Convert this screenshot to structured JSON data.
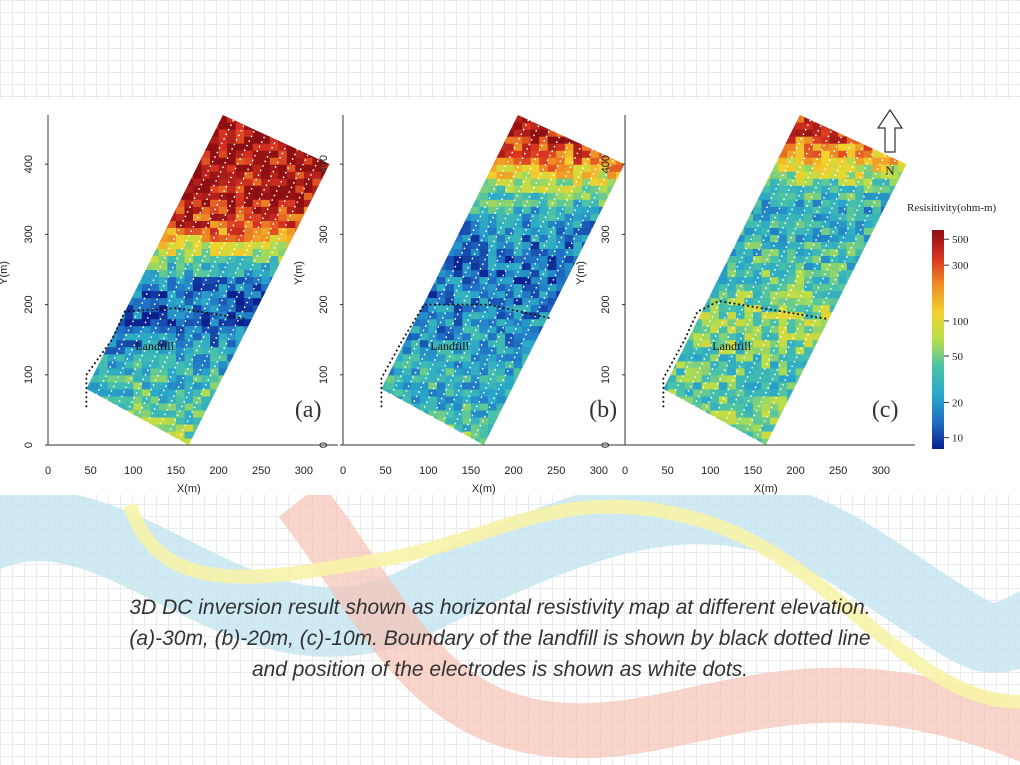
{
  "colors": {
    "colormap": [
      "#0b1f8f",
      "#1f6fc4",
      "#2aa8c9",
      "#49c2a8",
      "#b7de4a",
      "#f2d22c",
      "#ef8d25",
      "#d73221",
      "#8e0f12"
    ],
    "ribbon_cyan": "#bfe3ef",
    "ribbon_pink": "#f7c2b4",
    "ribbon_yellow": "#f7f3a8"
  },
  "chart_data": [
    {
      "type": "heatmap",
      "panel_label": "(a)",
      "region_label": "Landfill",
      "xlabel": "X(m)",
      "ylabel": "Y(m)",
      "xlim": [
        0,
        340
      ],
      "ylim": [
        0,
        470
      ],
      "xticks": [
        "0",
        "50",
        "100",
        "150",
        "200",
        "250",
        "300"
      ],
      "yticks": [
        "0",
        "100",
        "200",
        "300",
        "400"
      ],
      "resistivity_by_y": [
        [
          0,
          60
        ],
        [
          60,
          40
        ],
        [
          120,
          25
        ],
        [
          180,
          12
        ],
        [
          230,
          15
        ],
        [
          270,
          60
        ],
        [
          310,
          300
        ],
        [
          360,
          450
        ],
        [
          470,
          600
        ]
      ],
      "landfill_boundary": [
        [
          45,
          55
        ],
        [
          45,
          100
        ],
        [
          75,
          150
        ],
        [
          90,
          190
        ],
        [
          150,
          195
        ],
        [
          230,
          180
        ]
      ]
    },
    {
      "type": "heatmap",
      "panel_label": "(b)",
      "region_label": "Landfill",
      "xlabel": "X(m)",
      "ylabel": "Y(m)",
      "xlim": [
        0,
        340
      ],
      "ylim": [
        0,
        470
      ],
      "xticks": [
        "0",
        "50",
        "100",
        "150",
        "200",
        "250",
        "300"
      ],
      "yticks": [
        "0",
        "100",
        "200",
        "300",
        "400"
      ],
      "resistivity_by_y": [
        [
          0,
          45
        ],
        [
          60,
          30
        ],
        [
          120,
          25
        ],
        [
          180,
          18
        ],
        [
          250,
          14
        ],
        [
          320,
          20
        ],
        [
          370,
          60
        ],
        [
          400,
          200
        ],
        [
          440,
          400
        ],
        [
          470,
          500
        ]
      ],
      "landfill_boundary": [
        [
          45,
          55
        ],
        [
          45,
          95
        ],
        [
          70,
          150
        ],
        [
          95,
          200
        ],
        [
          170,
          200
        ],
        [
          245,
          180
        ]
      ]
    },
    {
      "type": "heatmap",
      "panel_label": "(c)",
      "region_label": "Landfill",
      "xlabel": "X(m)",
      "ylabel": "Y(m)",
      "xlim": [
        0,
        340
      ],
      "ylim": [
        0,
        470
      ],
      "xticks": [
        "0",
        "50",
        "100",
        "150",
        "200",
        "250",
        "300"
      ],
      "yticks": [
        "0",
        "100",
        "200",
        "300",
        "400"
      ],
      "resistivity_by_y": [
        [
          0,
          60
        ],
        [
          60,
          40
        ],
        [
          120,
          40
        ],
        [
          180,
          60
        ],
        [
          230,
          40
        ],
        [
          290,
          30
        ],
        [
          340,
          25
        ],
        [
          380,
          60
        ],
        [
          430,
          250
        ],
        [
          470,
          400
        ]
      ],
      "landfill_boundary": [
        [
          45,
          55
        ],
        [
          45,
          95
        ],
        [
          70,
          150
        ],
        [
          85,
          190
        ],
        [
          110,
          205
        ],
        [
          235,
          180
        ]
      ]
    }
  ],
  "legend": {
    "title": "Resisitivity(ohm-m)",
    "ticks": [
      "500",
      "300",
      "100",
      "50",
      "20",
      "10"
    ],
    "tick_values": [
      500,
      300,
      100,
      50,
      20,
      10
    ],
    "range": [
      8,
      600
    ]
  },
  "north_arrow": {
    "label": "N"
  },
  "caption": {
    "line1": "3D DC inversion result shown as horizontal resistivity map at different elevation.",
    "line2": "(a)-30m, (b)-20m, (c)-10m. Boundary of the landfill is shown by black dotted line",
    "line3": "and position of the electrodes is shown as white dots."
  }
}
